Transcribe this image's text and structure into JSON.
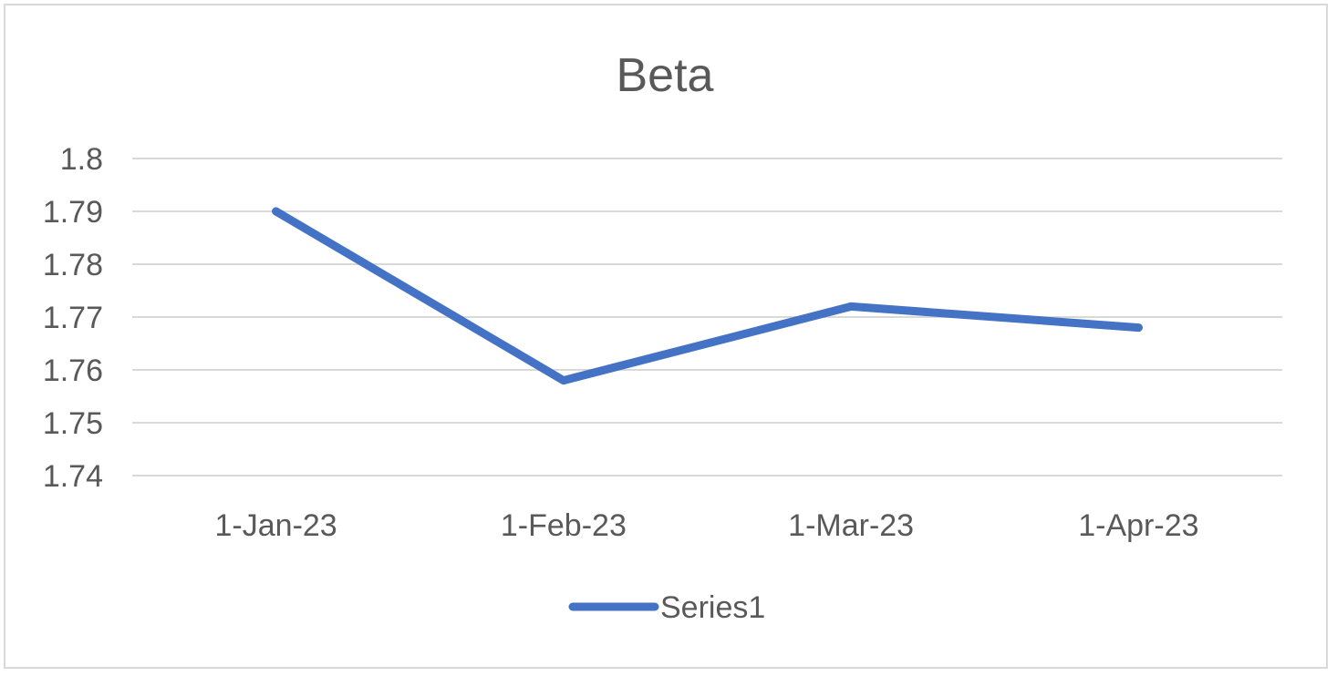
{
  "chart_data": {
    "type": "line",
    "title": "Beta",
    "xlabel": "",
    "ylabel": "",
    "categories": [
      "1-Jan-23",
      "1-Feb-23",
      "1-Mar-23",
      "1-Apr-23"
    ],
    "series": [
      {
        "name": "Series1",
        "values": [
          1.79,
          1.758,
          1.772,
          1.768
        ],
        "color": "#4472c4"
      }
    ],
    "yticks": [
      "1.74",
      "1.75",
      "1.76",
      "1.77",
      "1.78",
      "1.79",
      "1.8"
    ],
    "ylim": [
      1.74,
      1.8
    ],
    "grid": true,
    "legend": "bottom"
  }
}
